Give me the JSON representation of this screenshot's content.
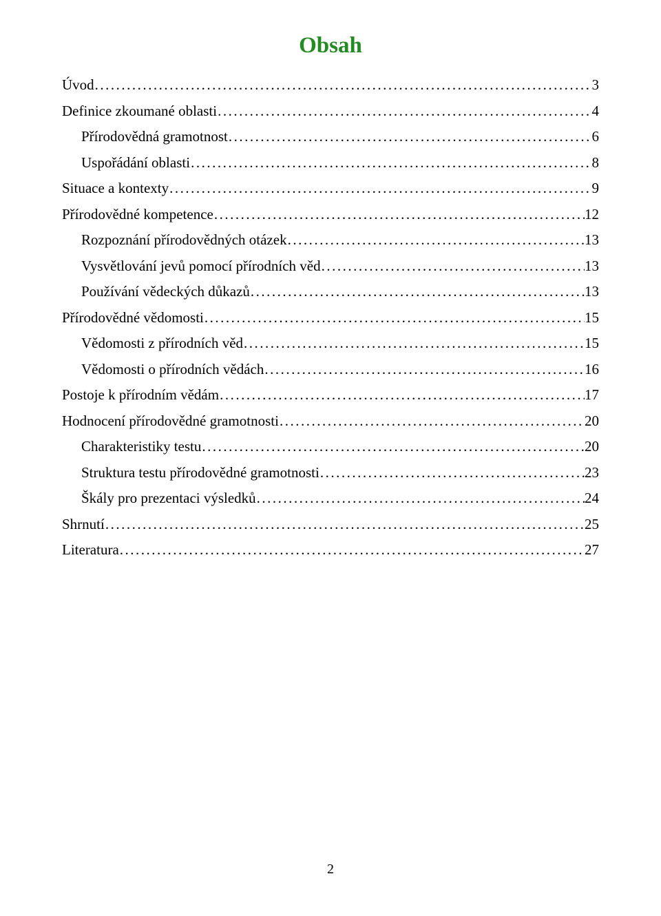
{
  "title": {
    "text": "Obsah",
    "color": "#228b22",
    "fontsize": 33
  },
  "text_color": "#000000",
  "entries": [
    {
      "label": "Úvod",
      "page": "3",
      "indent": 0
    },
    {
      "label": "Definice zkoumané oblasti",
      "page": "4",
      "indent": 0
    },
    {
      "label": "Přírodovědná gramotnost",
      "page": "6",
      "indent": 1
    },
    {
      "label": "Uspořádání oblasti",
      "page": "8",
      "indent": 1
    },
    {
      "label": "Situace a kontexty",
      "page": "9",
      "indent": 0
    },
    {
      "label": "Přírodovědné kompetence",
      "page": "12",
      "indent": 0
    },
    {
      "label": "Rozpoznání přírodovědných otázek",
      "page": "13",
      "indent": 1
    },
    {
      "label": "Vysvětlování jevů pomocí přírodních věd",
      "page": "13",
      "indent": 1
    },
    {
      "label": "Používání vědeckých důkazů",
      "page": "13",
      "indent": 1
    },
    {
      "label": "Přírodovědné vědomosti",
      "page": "15",
      "indent": 0
    },
    {
      "label": "Vědomosti z přírodních věd",
      "page": "15",
      "indent": 1
    },
    {
      "label": "Vědomosti o přírodních vědách",
      "page": "16",
      "indent": 1
    },
    {
      "label": "Postoje k přírodním vědám",
      "page": "17",
      "indent": 0
    },
    {
      "label": "Hodnocení přírodovědné gramotnosti",
      "page": "20",
      "indent": 0
    },
    {
      "label": "Charakteristiky testu",
      "page": "20",
      "indent": 1
    },
    {
      "label": "Struktura testu přírodovědné gramotnosti",
      "page": "23",
      "indent": 1
    },
    {
      "label": "Škály pro prezentaci výsledků",
      "page": "24",
      "indent": 1
    },
    {
      "label": "Shrnutí",
      "page": "25",
      "indent": 0
    },
    {
      "label": "Literatura",
      "page": "27",
      "indent": 0
    }
  ],
  "page_number": "2"
}
